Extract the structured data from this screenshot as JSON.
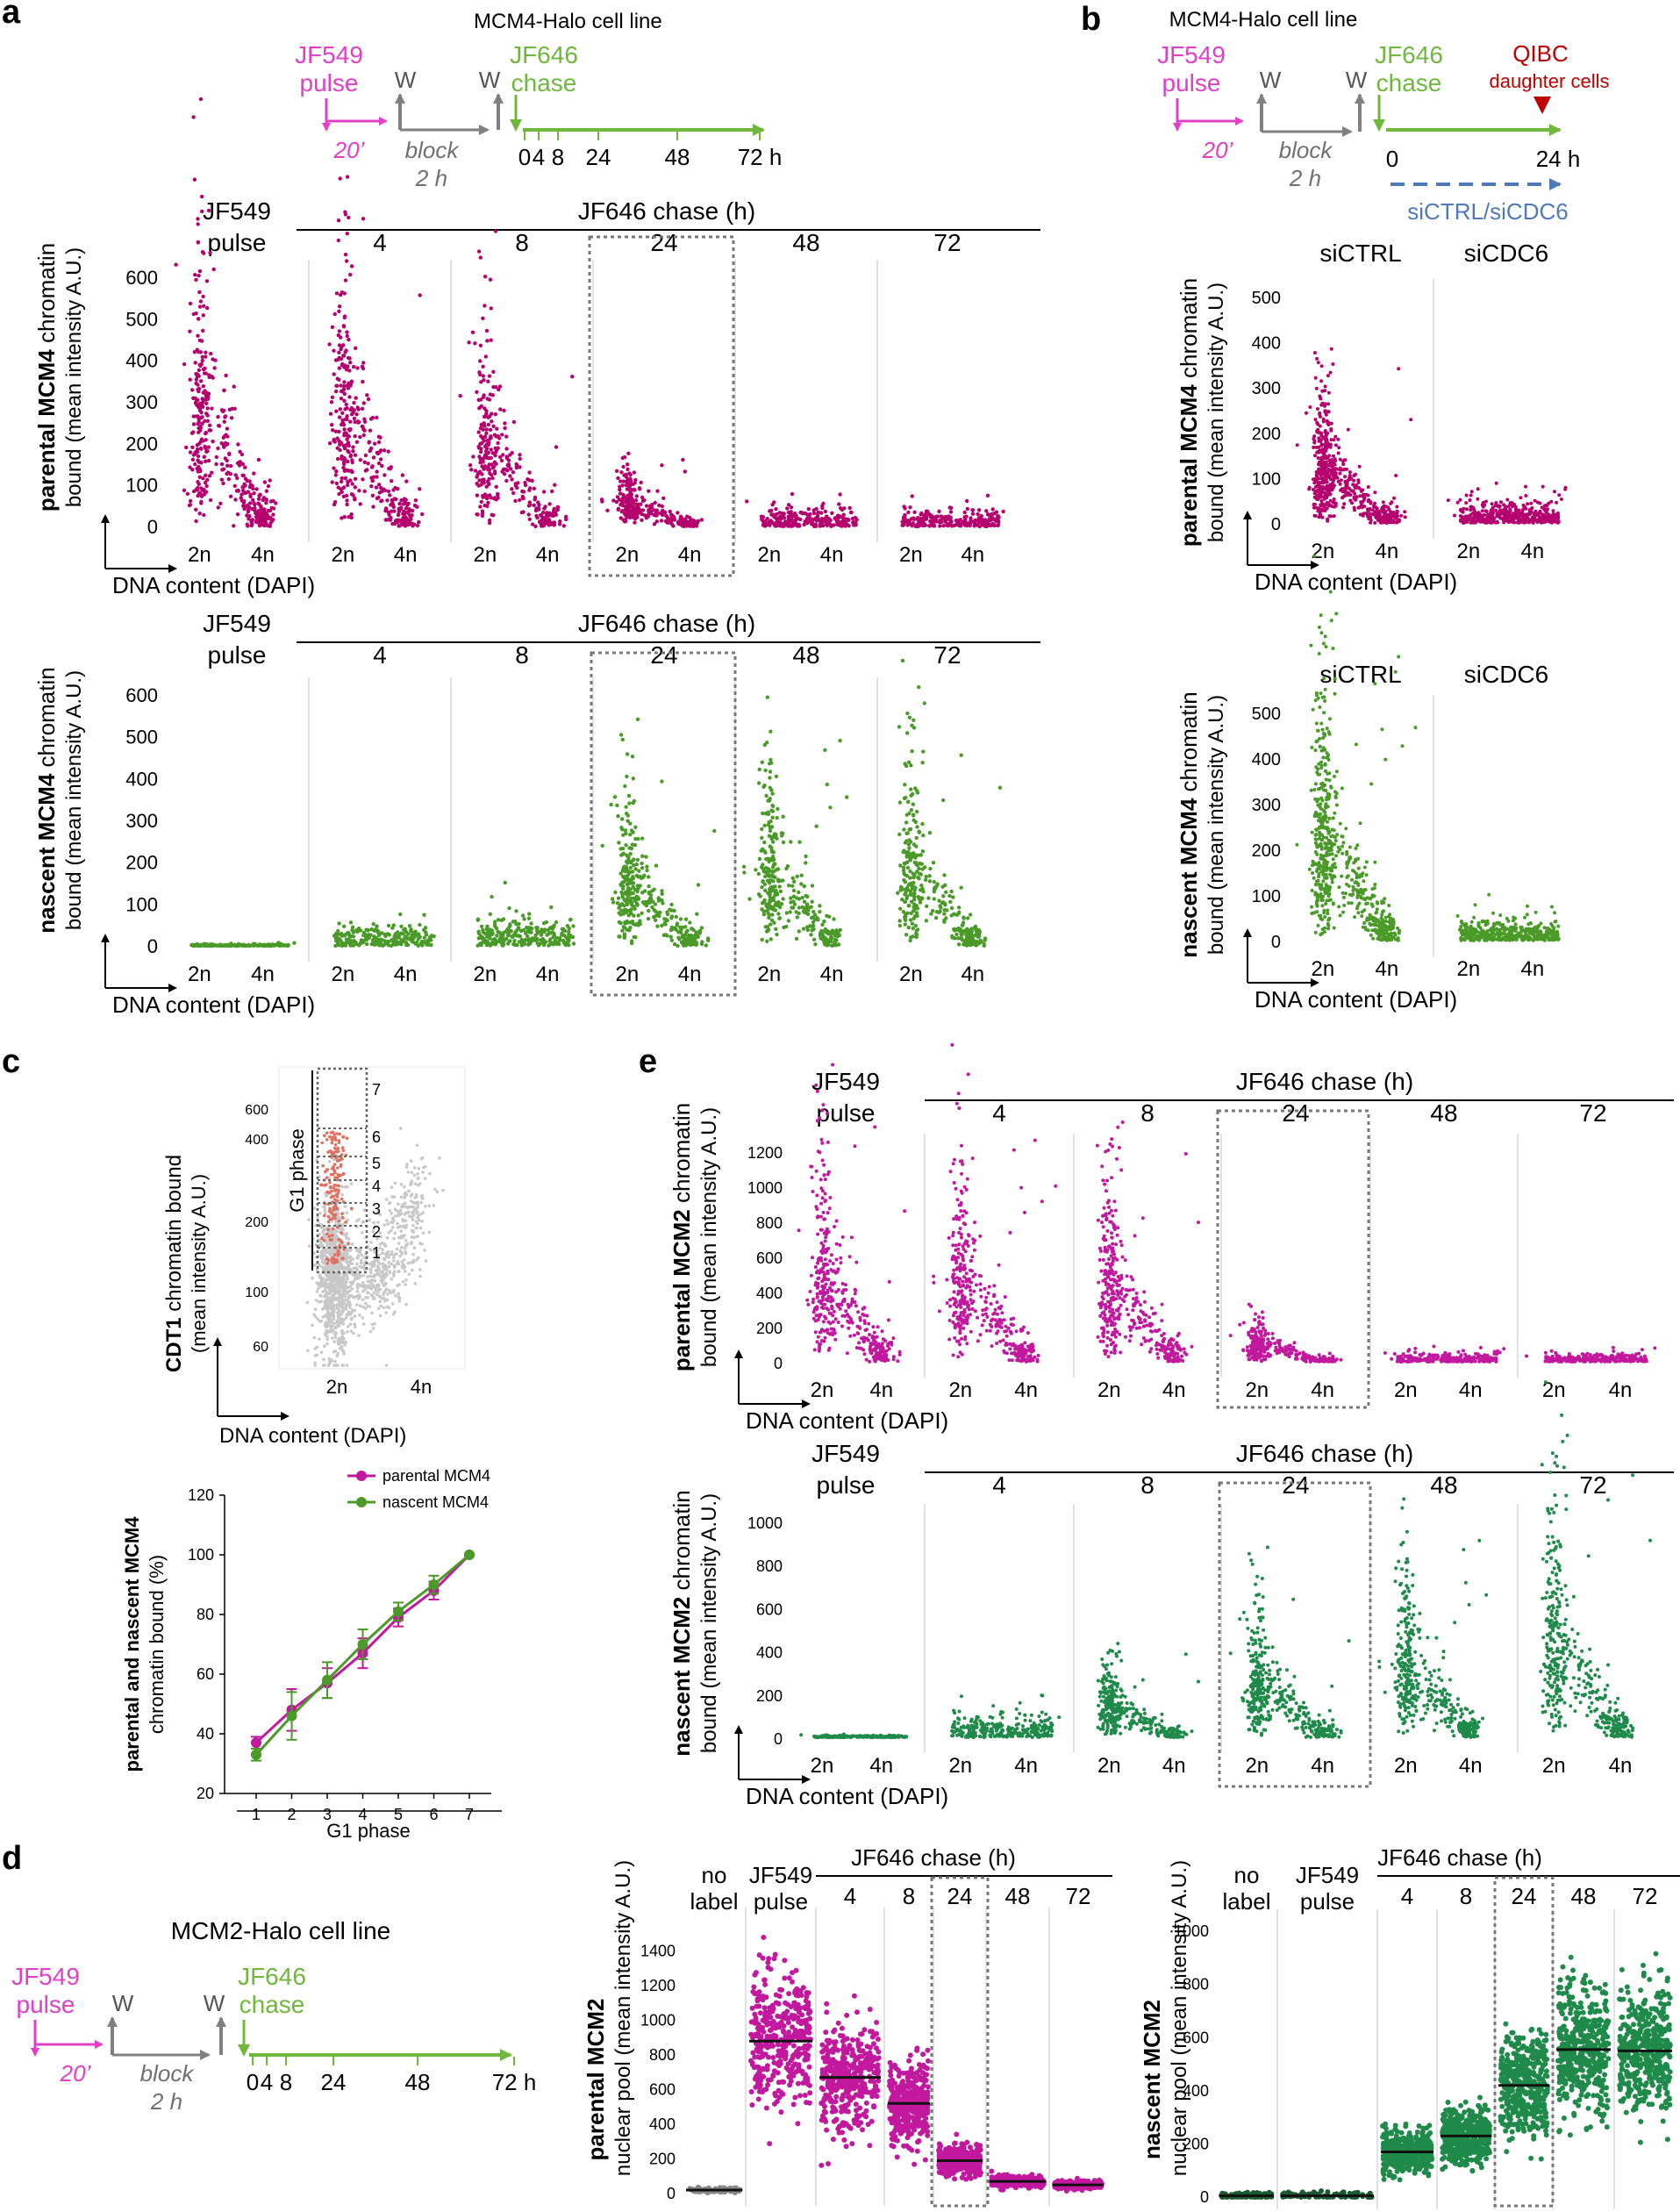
{
  "colors": {
    "parental": "#b5006e",
    "nascent": "#4a9a28",
    "mcm2_parental": "#c2189e",
    "mcm2_nascent": "#1f8a4a",
    "label_pink": "#e040c8",
    "label_green": "#6fb83c",
    "arrow_grey": "#808080",
    "arrow_blue": "#4f79b8",
    "qibc_red": "#c00000",
    "gray_scatter": "#c8c8c8",
    "red_dots": "#e07060",
    "median_line": "#111111"
  },
  "common": {
    "jf549": "JF549",
    "pulse": "pulse",
    "jf646": "JF646",
    "chase": "chase",
    "W": "W",
    "block": "block",
    "two_h": "2 h",
    "twenty": "20’",
    "dna_axis": "DNA content (DAPI)",
    "chase_h": "JF646 chase (h)",
    "x2n": "2n",
    "x4n": "4n",
    "jf549_pulse_line1": "JF549",
    "jf549_pulse_line2": "pulse"
  },
  "panel_a": {
    "letter": "a",
    "title": "MCM4-Halo cell line",
    "timeline_ticks": [
      "0",
      "4",
      "8",
      "24",
      "48",
      "72 h"
    ],
    "col_heads": [
      "4",
      "8",
      "24",
      "48",
      "72"
    ],
    "top_ylabel_bold": "parental MCM4",
    "top_ylabel_rest": "chromatin",
    "ylabel2": "bound (mean intensity A.U.)",
    "bottom_ylabel_bold": "nascent MCM4",
    "yticks": [
      "0",
      "100",
      "200",
      "300",
      "400",
      "500",
      "600"
    ]
  },
  "panel_b": {
    "letter": "b",
    "title": "MCM4-Halo cell line",
    "qibc": "QIBC",
    "daughter": "daughter cells",
    "t0": "0",
    "t24": "24 h",
    "sirna": "siCTRL/siCDC6",
    "sictrl": "siCTRL",
    "sicdc6": "siCDC6",
    "yticks": [
      "0",
      "100",
      "200",
      "300",
      "400",
      "500"
    ]
  },
  "panel_c": {
    "letter": "c",
    "g1": "G1 phase",
    "bins": [
      "1",
      "2",
      "3",
      "4",
      "5",
      "6",
      "7"
    ],
    "yticks": [
      "60",
      "100",
      "200",
      "400",
      "600"
    ],
    "cdt1_bold": "CDT1",
    "cdt1_rest": "chromatin bound",
    "cdt1_l2": "(mean intensity A.U.)",
    "line_ylabel1": "parental and nascent MCM4",
    "line_ylabel2": "chromatin bound (%)",
    "line_xlabel": "G1 phase",
    "legend": [
      "parental MCM4",
      "nascent MCM4"
    ],
    "line_yticks": [
      "20",
      "40",
      "60",
      "80",
      "100",
      "120"
    ]
  },
  "panel_d": {
    "letter": "d",
    "title": "MCM2-Halo cell line",
    "timeline_ticks": [
      "0",
      "4",
      "8",
      "24",
      "48",
      "72 h"
    ],
    "no_label_1": "no",
    "no_label_2": "label",
    "col_heads": [
      "4",
      "8",
      "24",
      "48",
      "72"
    ],
    "par_ylabel_bold": "parental MCM2",
    "par_ylabel2": "nuclear pool (mean intensity A.U.)",
    "nas_ylabel_bold": "nascent MCM2",
    "nas_ylabel2": "nuclear pool (mean intensity A.U.)",
    "par_yticks": [
      "0",
      "200",
      "400",
      "600",
      "800",
      "1000",
      "1200",
      "1400"
    ],
    "nas_yticks": [
      "0",
      "200",
      "400",
      "600",
      "800",
      "1000"
    ]
  },
  "panel_e": {
    "letter": "e",
    "col_heads": [
      "4",
      "8",
      "24",
      "48",
      "72"
    ],
    "top_ylabel_bold": "parental MCM2",
    "top_ylabel_rest": "chromatin",
    "bottom_ylabel_bold": "nascent MCM2",
    "ylabel2": "bound (mean intensity A.U.)",
    "top_yticks": [
      "0",
      "200",
      "400",
      "600",
      "800",
      "1000",
      "1200"
    ],
    "bot_yticks": [
      "0",
      "200",
      "400",
      "600",
      "800",
      "1000"
    ]
  },
  "chart_data": [
    {
      "id": "a-parental",
      "type": "scatter",
      "title": "parental MCM4 chromatin bound",
      "xlabel": "DNA content (DAPI)",
      "ylabel": "mean intensity A.U.",
      "ylim": [
        0,
        620
      ],
      "panels": [
        "JF549 pulse",
        "4",
        "8",
        "24",
        "48",
        "72"
      ],
      "peak_values": [
        500,
        520,
        420,
        120,
        55,
        50
      ]
    },
    {
      "id": "a-nascent",
      "type": "scatter",
      "title": "nascent MCM4 chromatin bound",
      "xlabel": "DNA content (DAPI)",
      "ylabel": "mean intensity A.U.",
      "ylim": [
        0,
        620
      ],
      "panels": [
        "JF549 pulse",
        "4",
        "8",
        "24",
        "48",
        "72"
      ],
      "peak_values": [
        5,
        60,
        90,
        320,
        350,
        340
      ]
    },
    {
      "id": "b-parental",
      "type": "scatter",
      "title": "parental MCM4 chromatin bound",
      "ylim": [
        0,
        520
      ],
      "panels": [
        "siCTRL",
        "siCDC6"
      ],
      "peak_values": [
        230,
        60
      ]
    },
    {
      "id": "b-nascent",
      "type": "scatter",
      "title": "nascent MCM4 chromatin bound",
      "ylim": [
        0,
        520
      ],
      "panels": [
        "siCTRL",
        "siCDC6"
      ],
      "peak_values": [
        420,
        60
      ]
    },
    {
      "id": "c-cdt1",
      "type": "scatter",
      "title": "CDT1 chromatin bound",
      "ylabel": "mean intensity A.U.",
      "yscale": "log",
      "bins": [
        "1",
        "2",
        "3",
        "4",
        "5",
        "6",
        "7"
      ]
    },
    {
      "id": "c-line",
      "type": "line",
      "categories": [
        "1",
        "2",
        "3",
        "4",
        "5",
        "6",
        "7"
      ],
      "xlabel": "G1 phase",
      "ylabel": "parental and nascent MCM4 chromatin bound (%)",
      "ylim": [
        20,
        120
      ],
      "series": [
        {
          "name": "parental MCM4",
          "values": [
            37,
            48,
            57,
            67,
            79,
            88,
            100
          ],
          "err": [
            2,
            7,
            5,
            5,
            3,
            3,
            0
          ]
        },
        {
          "name": "nascent MCM4",
          "values": [
            33,
            46,
            58,
            70,
            81,
            90,
            100
          ],
          "err": [
            2,
            8,
            6,
            5,
            3,
            3,
            0
          ]
        }
      ]
    },
    {
      "id": "d-parental",
      "type": "scatter",
      "title": "parental MCM2 nuclear pool",
      "ylabel": "mean intensity A.U.",
      "ylim": [
        0,
        1600
      ],
      "categories": [
        "no label",
        "JF549 pulse",
        "4",
        "8",
        "24",
        "48",
        "72"
      ],
      "medians": [
        20,
        880,
        670,
        520,
        190,
        70,
        50
      ]
    },
    {
      "id": "d-nascent",
      "type": "scatter",
      "title": "nascent MCM2 nuclear pool",
      "ylabel": "mean intensity A.U.",
      "ylim": [
        0,
        1050
      ],
      "categories": [
        "no label",
        "JF549 pulse",
        "4",
        "8",
        "24",
        "48",
        "72"
      ],
      "medians": [
        5,
        5,
        170,
        230,
        420,
        555,
        550
      ]
    },
    {
      "id": "e-parental",
      "type": "scatter",
      "title": "parental MCM2 chromatin bound",
      "ylim": [
        0,
        1300
      ],
      "panels": [
        "JF549 pulse",
        "4",
        "8",
        "24",
        "48",
        "72"
      ],
      "peak_values": [
        1000,
        900,
        800,
        200,
        60,
        60
      ]
    },
    {
      "id": "e-nascent",
      "type": "scatter",
      "title": "nascent MCM2 chromatin bound",
      "ylim": [
        0,
        1000
      ],
      "panels": [
        "JF549 pulse",
        "4",
        "8",
        "24",
        "48",
        "72"
      ],
      "peak_values": [
        10,
        130,
        260,
        520,
        650,
        820
      ]
    }
  ]
}
